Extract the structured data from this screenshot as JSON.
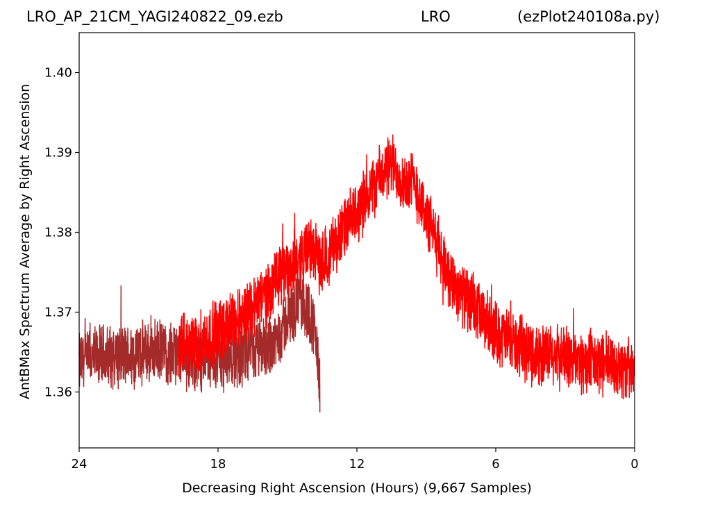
{
  "header": {
    "file_title": "LRO_AP_21CM_YAGI240822_09.ezb",
    "site_title": "LRO",
    "script_title": "(ezPlot240108a.py)"
  },
  "chart_data": {
    "type": "line",
    "xlabel": "Decreasing Right Ascension (Hours) (9,667 Samples)",
    "ylabel": "AntBMax Spectrum Average by Right Ascension",
    "xlim": [
      24,
      0
    ],
    "ylim": [
      1.353,
      1.405
    ],
    "x_ticks": [
      24,
      18,
      12,
      6,
      0
    ],
    "x_tick_labels": [
      "24",
      "18",
      "12",
      "6",
      "0"
    ],
    "y_ticks": [
      1.36,
      1.37,
      1.38,
      1.39,
      1.4
    ],
    "y_tick_labels": [
      "1.36",
      "1.37",
      "1.38",
      "1.39",
      "1.40"
    ],
    "grid": false,
    "series": [
      {
        "color": "#a52a2a",
        "noise": 0.0045,
        "x": [
          24,
          23,
          22,
          21,
          20,
          19.5,
          19,
          18,
          17,
          16,
          15.5,
          15,
          14.5,
          14.2,
          14,
          13.8,
          13.6
        ],
        "y": [
          1.3635,
          1.3645,
          1.3645,
          1.365,
          1.365,
          1.3645,
          1.364,
          1.364,
          1.3645,
          1.3655,
          1.3665,
          1.369,
          1.3715,
          1.3705,
          1.3695,
          1.3675,
          1.3605
        ]
      },
      {
        "color": "#ff0000",
        "noise": 0.0045,
        "x": [
          19.7,
          19,
          18,
          17,
          16,
          15,
          14,
          13.5,
          13,
          12,
          11,
          10.5,
          10,
          9.5,
          9,
          8,
          7,
          6,
          5,
          4,
          3,
          2,
          1,
          0
        ],
        "y": [
          1.3655,
          1.366,
          1.3675,
          1.3695,
          1.372,
          1.3755,
          1.378,
          1.376,
          1.3785,
          1.3825,
          1.387,
          1.3885,
          1.3865,
          1.386,
          1.382,
          1.3745,
          1.3705,
          1.3675,
          1.3655,
          1.3645,
          1.3645,
          1.3635,
          1.3635,
          1.3625
        ]
      }
    ]
  }
}
